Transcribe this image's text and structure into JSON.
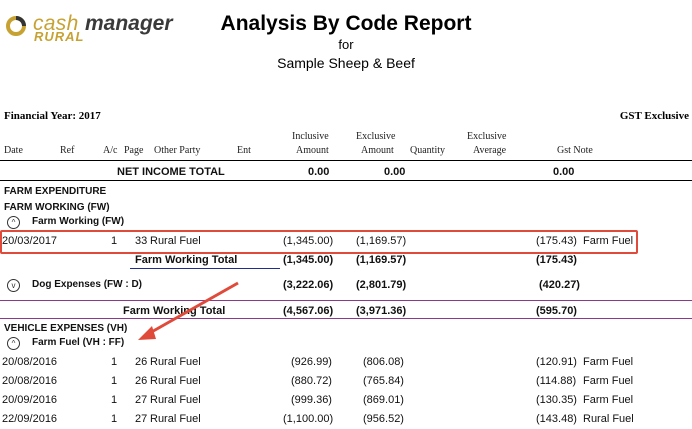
{
  "logo": {
    "cash": "cash",
    "manager": "manager",
    "rural": "RURAL",
    "icon": "swirl-logo-icon"
  },
  "title": {
    "line1": "Analysis By Code Report",
    "line2": "for",
    "line3": "Sample Sheep & Beef"
  },
  "financial_year": "Financial Year: 2017",
  "gst_mode": "GST Exclusive",
  "columns": {
    "date": "Date",
    "ref": "Ref",
    "ac": "A/c",
    "page": "Page",
    "other_party": "Other Party",
    "ent": "Ent",
    "inclusive_1": "Inclusive",
    "inclusive_2": "Amount",
    "exclusive_1": "Exclusive",
    "exclusive_2": "Amount",
    "quantity": "Quantity",
    "excl_avg_1": "Exclusive",
    "excl_avg_2": "Average",
    "gst_note": "Gst Note"
  },
  "net_income": {
    "label": "NET INCOME TOTAL",
    "inclusive": "0.00",
    "exclusive": "0.00",
    "gst": "0.00"
  },
  "farm_expenditure": "FARM EXPENDITURE",
  "farm_working": {
    "heading": "FARM WORKING (FW)",
    "sub": "Farm Working (FW)",
    "row": {
      "date": "20/03/2017",
      "ac": "1",
      "page": "33",
      "party": "Rural Fuel",
      "inclusive": "(1,345.00)",
      "exclusive": "(1,169.57)",
      "gst": "(175.43)",
      "note": "Farm Fuel"
    },
    "subtotal": {
      "label": "Farm Working Total",
      "inclusive": "(1,345.00)",
      "exclusive": "(1,169.57)",
      "gst": "(175.43)"
    },
    "dog": {
      "label": "Dog Expenses (FW : D)",
      "inclusive": "(3,222.06)",
      "exclusive": "(2,801.79)",
      "gst": "(420.27)"
    },
    "total": {
      "label": "Farm Working Total",
      "inclusive": "(4,567.06)",
      "exclusive": "(3,971.36)",
      "gst": "(595.70)"
    }
  },
  "vehicle": {
    "heading": "VEHICLE EXPENSES (VH)",
    "sub": "Farm Fuel (VH : FF)",
    "rows": [
      {
        "date": "20/08/2016",
        "ac": "1",
        "page": "26",
        "party": "Rural Fuel",
        "inclusive": "(926.99)",
        "exclusive": "(806.08)",
        "gst": "(120.91)",
        "note": "Farm Fuel"
      },
      {
        "date": "20/08/2016",
        "ac": "1",
        "page": "26",
        "party": "Rural Fuel",
        "inclusive": "(880.72)",
        "exclusive": "(765.84)",
        "gst": "(114.88)",
        "note": "Farm Fuel"
      },
      {
        "date": "20/09/2016",
        "ac": "1",
        "page": "27",
        "party": "Rural Fuel",
        "inclusive": "(999.36)",
        "exclusive": "(869.01)",
        "gst": "(130.35)",
        "note": "Farm Fuel"
      },
      {
        "date": "22/09/2016",
        "ac": "1",
        "page": "27",
        "party": "Rural Fuel",
        "inclusive": "(1,100.00)",
        "exclusive": "(956.52)",
        "gst": "(143.48)",
        "note": "Rural Fuel"
      }
    ]
  },
  "icons": {
    "collapse": "chevron-up-icon",
    "expand": "chevron-down-icon",
    "arrow": "annotation-arrow-icon"
  },
  "colors": {
    "green": "#2e8b2e",
    "purple": "#8b1a8b",
    "navy": "#1f2e8c",
    "highlight": "#e04a3a",
    "logo_gold": "#c7a233"
  }
}
